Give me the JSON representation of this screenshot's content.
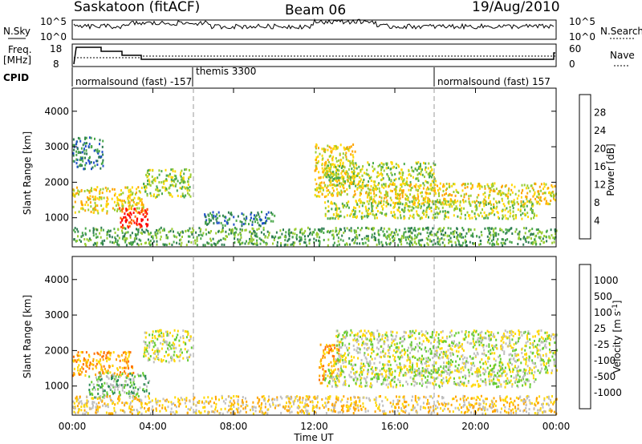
{
  "header": {
    "station": "Saskatoon (fitACF)",
    "beam": "Beam 06",
    "date": "19/Aug/2010"
  },
  "panels": {
    "nsky_label": "N.Sky",
    "nsky_ticks": [
      "10^5",
      "10^0"
    ],
    "nsearch_label": "N.Search",
    "nsearch_ticks": [
      "10^5",
      "10^0"
    ],
    "freq_label_1": "Freq.",
    "freq_label_2": "[MHz]",
    "freq_ticks": [
      "18",
      "8"
    ],
    "nave_label": "Nave",
    "nave_ticks": [
      "60",
      "0"
    ],
    "cpid_label": "CPID",
    "cpid_segments": [
      {
        "label": "normalsound (fast) -157",
        "start_hour": 0,
        "end_hour": 6
      },
      {
        "label": "themis 3300",
        "start_hour": 6,
        "end_hour": 18
      },
      {
        "label": "normalsound (fast) 157",
        "start_hour": 18,
        "end_hour": 24
      }
    ]
  },
  "chart_data": [
    {
      "type": "heatmap",
      "name": "power",
      "ylabel": "Slant Range [km]",
      "xlabel": "Time UT",
      "x_ticks": [
        "00:00",
        "04:00",
        "08:00",
        "12:00",
        "16:00",
        "20:00",
        "00:00"
      ],
      "x_range_hours": [
        0,
        24
      ],
      "y_ticks": [
        1000,
        2000,
        3000,
        4000
      ],
      "y_range_km": [
        180,
        4650
      ],
      "colorbar_label": "Power [dB]",
      "colorbar_ticks": [
        "28",
        "24",
        "20",
        "16",
        "12",
        "8",
        "4"
      ],
      "colorbar_colors": [
        "#0000ff",
        "#2050c8",
        "#2e7d52",
        "#4aa84a",
        "#9acd32",
        "#ffd700",
        "#ffa500",
        "#ff6000",
        "#ff0000"
      ],
      "echo_regions": [
        {
          "t0": 0.0,
          "t1": 3.5,
          "r0": 1150,
          "r1": 1900,
          "level": 5
        },
        {
          "t0": 2.3,
          "t1": 3.8,
          "r0": 700,
          "r1": 1300,
          "level": 8
        },
        {
          "t0": 3.5,
          "t1": 5.9,
          "r0": 1600,
          "r1": 2400,
          "level": 4
        },
        {
          "t0": 0.0,
          "t1": 24.0,
          "r0": 250,
          "r1": 750,
          "level": 3
        },
        {
          "t0": 12.0,
          "t1": 14.0,
          "r0": 1600,
          "r1": 3100,
          "level": 5
        },
        {
          "t0": 12.5,
          "t1": 18.0,
          "r0": 1900,
          "r1": 2600,
          "level": 4
        },
        {
          "t0": 14.0,
          "t1": 24.0,
          "r0": 1400,
          "r1": 2000,
          "level": 5
        },
        {
          "t0": 12.5,
          "t1": 23.0,
          "r0": 1000,
          "r1": 1500,
          "level": 4
        },
        {
          "t0": 0.0,
          "t1": 1.5,
          "r0": 2400,
          "r1": 3300,
          "level": 2
        },
        {
          "t0": 6.5,
          "t1": 10.0,
          "r0": 800,
          "r1": 1200,
          "level": 2
        }
      ]
    },
    {
      "type": "heatmap",
      "name": "velocity",
      "ylabel": "Slant Range [km]",
      "xlabel": "Time UT",
      "x_ticks": [
        "00:00",
        "04:00",
        "08:00",
        "12:00",
        "16:00",
        "20:00",
        "00:00"
      ],
      "x_range_hours": [
        0,
        24
      ],
      "y_ticks": [
        1000,
        2000,
        3000,
        4000
      ],
      "y_range_km": [
        180,
        4650
      ],
      "colorbar_label": "Velocity [m s",
      "colorbar_label_sup": "-1",
      "colorbar_label_end": "]",
      "colorbar_ticks": [
        "1000",
        "500",
        "100",
        "25",
        "-25",
        "-100",
        "-500",
        "-1000"
      ],
      "colorbar_colors": [
        "#1a237e",
        "#3060c0",
        "#2e8b57",
        "#66cc33",
        "#bfbfbf",
        "#ffd700",
        "#ffa500",
        "#ff7000",
        "#ff0000"
      ],
      "echo_regions": [
        {
          "t0": 0.0,
          "t1": 3.0,
          "r0": 1300,
          "r1": 2000,
          "level": 6
        },
        {
          "t0": 0.8,
          "t1": 3.8,
          "r0": 700,
          "r1": 1400,
          "level": 3
        },
        {
          "t0": 3.5,
          "t1": 5.9,
          "r0": 1700,
          "r1": 2600,
          "level": 4
        },
        {
          "t0": 0.0,
          "t1": 24.0,
          "r0": 250,
          "r1": 750,
          "level": 5
        },
        {
          "t0": 12.2,
          "t1": 13.2,
          "r0": 1100,
          "r1": 2200,
          "level": 6
        },
        {
          "t0": 13.0,
          "t1": 24.0,
          "r0": 1400,
          "r1": 2600,
          "level": 4
        },
        {
          "t0": 12.5,
          "t1": 23.0,
          "r0": 1000,
          "r1": 1500,
          "level": 4
        }
      ]
    }
  ]
}
